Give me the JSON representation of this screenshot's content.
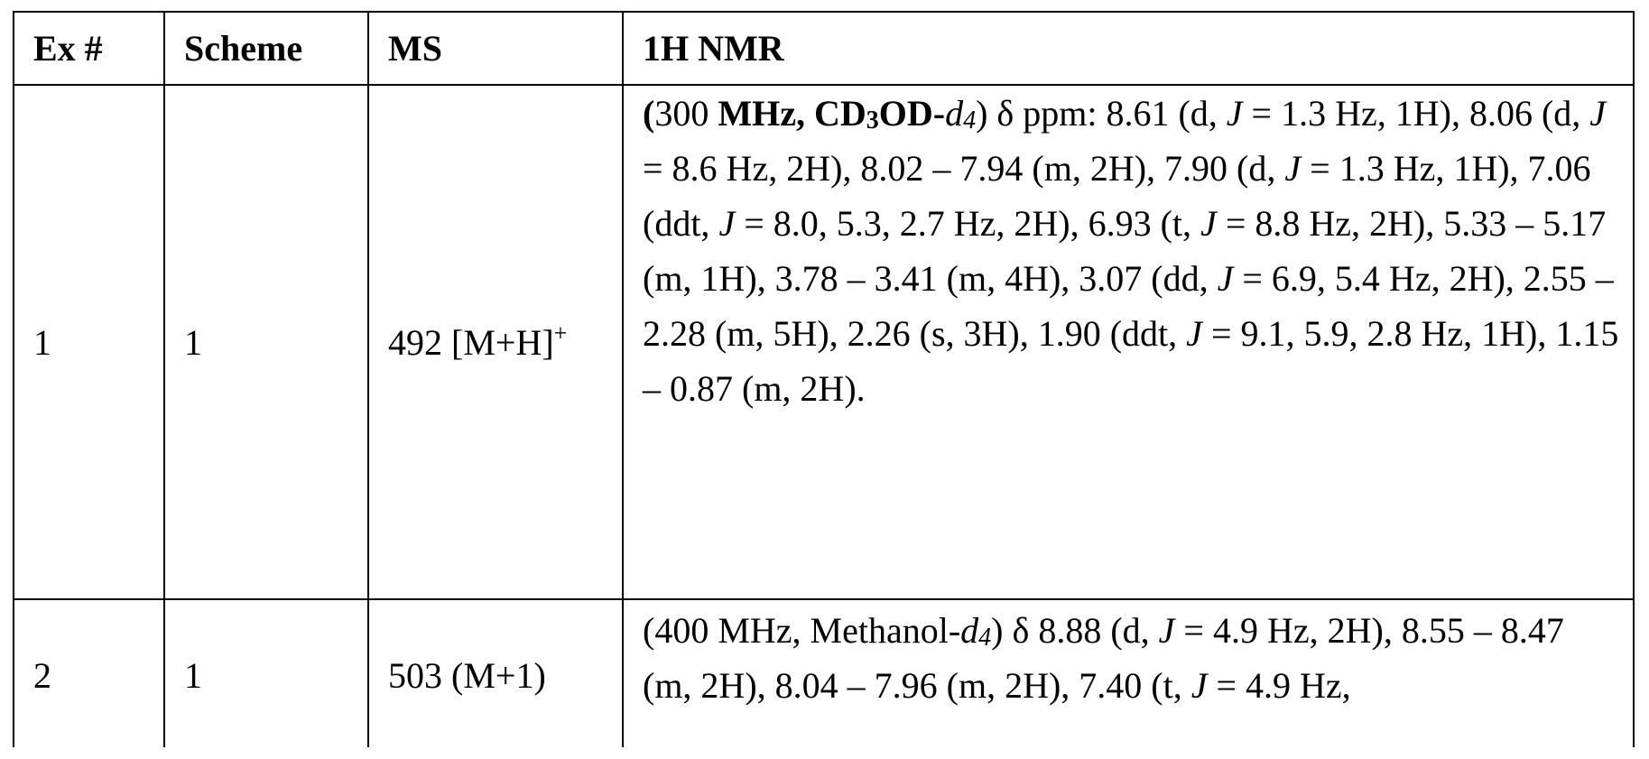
{
  "table": {
    "header": [
      "Ex #",
      "Scheme",
      "MS",
      "1H NMR"
    ],
    "rows": [
      {
        "ex": "1",
        "scheme": "1",
        "ms": [
          {
            "text": "492 [M+H]",
            "style": "normal"
          },
          {
            "text": "+",
            "style": "sup"
          }
        ],
        "nmr": [
          {
            "text": "(",
            "style": "bold"
          },
          {
            "text": "300 ",
            "style": "normal"
          },
          {
            "text": "MHz, CD",
            "style": "bold"
          },
          {
            "text": "3",
            "style": "bold-sub"
          },
          {
            "text": "OD-",
            "style": "bold"
          },
          {
            "text": "d",
            "style": "italic"
          },
          {
            "text": "4",
            "style": "italic-sub"
          },
          {
            "text": ") δ ppm: 8.61 (d, ",
            "style": "normal"
          },
          {
            "text": "J",
            "style": "italic"
          },
          {
            "text": " = 1.3 Hz, 1H), 8.06 (d, ",
            "style": "normal"
          },
          {
            "text": "J",
            "style": "italic"
          },
          {
            "text": " = 8.6 Hz, 2H), 8.02 – 7.94 (m, 2H), 7.90 (d, ",
            "style": "normal"
          },
          {
            "text": "J",
            "style": "italic"
          },
          {
            "text": " = 1.3 Hz, 1H), 7.06 (ddt, ",
            "style": "normal"
          },
          {
            "text": "J",
            "style": "italic"
          },
          {
            "text": " = 8.0, 5.3, 2.7 Hz, 2H), 6.93 (t, ",
            "style": "normal"
          },
          {
            "text": "J",
            "style": "italic"
          },
          {
            "text": " = 8.8 Hz, 2H), 5.33 – 5.17 (m, 1H), 3.78 – 3.41 (m, 4H), 3.07 (dd, ",
            "style": "normal"
          },
          {
            "text": "J",
            "style": "italic"
          },
          {
            "text": " = 6.9, 5.4 Hz, 2H), 2.55 – 2.28 (m, 5H), 2.26 (s, 3H), 1.90 (ddt, ",
            "style": "normal"
          },
          {
            "text": "J",
            "style": "italic"
          },
          {
            "text": " = 9.1, 5.9, 2.8 Hz, 1H), 1.15 – 0.87 (m, 2H).",
            "style": "normal"
          }
        ]
      },
      {
        "ex": "2",
        "scheme": "1",
        "ms": [
          {
            "text": "503 (M+1)",
            "style": "normal"
          }
        ],
        "nmr": [
          {
            "text": "(400 MHz, Methanol-",
            "style": "normal"
          },
          {
            "text": "d",
            "style": "italic"
          },
          {
            "text": "4",
            "style": "italic-sub"
          },
          {
            "text": ") δ 8.88 (d, ",
            "style": "normal"
          },
          {
            "text": "J",
            "style": "italic"
          },
          {
            "text": " = 4.9 Hz, 2H), 8.55 – 8.47 (m, 2H), 8.04 – 7.96 (m, 2H), 7.40 (t, ",
            "style": "normal"
          },
          {
            "text": "J",
            "style": "italic"
          },
          {
            "text": " = 4.9 Hz,",
            "style": "normal"
          }
        ]
      }
    ]
  }
}
